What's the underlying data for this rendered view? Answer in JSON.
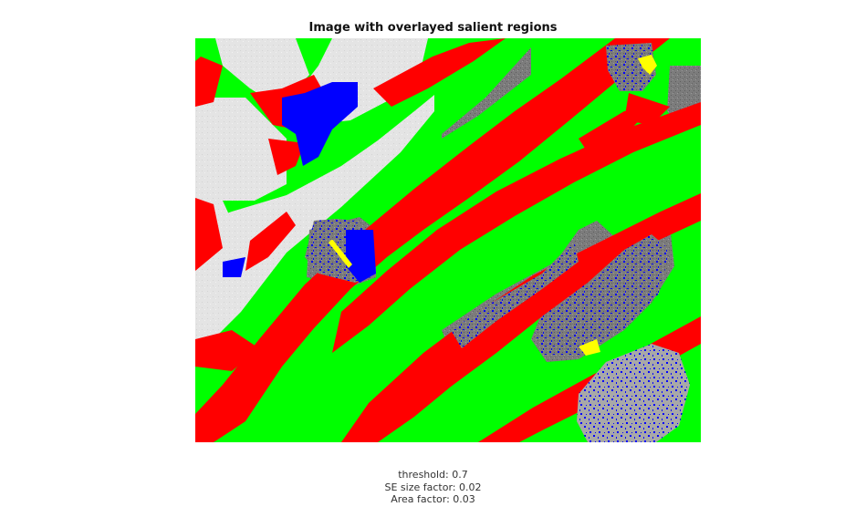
{
  "figure": {
    "title": "Image with overlayed salient regions"
  },
  "legend_colors": {
    "background_region": "#00ff00",
    "salient_region_a": "#ff0000",
    "salient_region_b": "#0000ff",
    "salient_region_c": "#ffff00",
    "base_image_light": "#e6e6e6",
    "base_image_dark": "#7a7a7a"
  },
  "caption": {
    "threshold": "threshold: 0.7",
    "se_size_factor": "SE size factor: 0.02",
    "area_factor": "Area factor: 0.03"
  }
}
